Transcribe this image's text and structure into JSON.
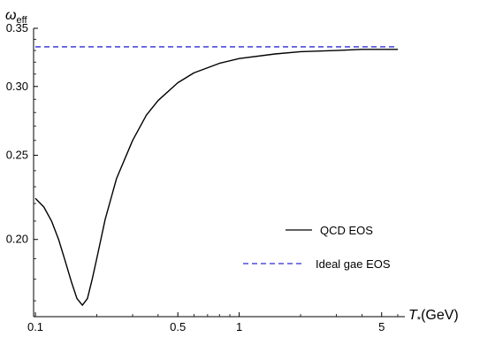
{
  "chart_data": {
    "type": "line",
    "x_scale": "log",
    "y_scale": "log",
    "xlim": [
      0.098,
      6.5
    ],
    "ylim": [
      0.163,
      0.35
    ],
    "xticks": [
      0.1,
      0.5,
      1,
      5
    ],
    "xtick_labels": [
      "0.1",
      "0.5",
      "1",
      "5"
    ],
    "yticks": [
      0.2,
      0.25,
      0.3,
      0.35
    ],
    "ytick_labels": [
      "0.20",
      "0.25",
      "0.30",
      "0.35"
    ],
    "y_axis_title": {
      "main": "ω",
      "sub": "eff"
    },
    "x_axis_title": {
      "main": "T",
      "sub": "*",
      "unit": "(GeV)"
    },
    "grid": false,
    "legend_position": "lower-right",
    "series": [
      {
        "name": "QCD EOS",
        "color": "#000000",
        "style": "solid",
        "x": [
          0.1,
          0.11,
          0.12,
          0.13,
          0.14,
          0.15,
          0.16,
          0.17,
          0.18,
          0.19,
          0.2,
          0.22,
          0.25,
          0.3,
          0.35,
          0.4,
          0.5,
          0.6,
          0.8,
          1.0,
          1.5,
          2.0,
          3.0,
          4.0,
          6.0
        ],
        "y": [
          0.223,
          0.218,
          0.21,
          0.2,
          0.189,
          0.179,
          0.171,
          0.168,
          0.171,
          0.18,
          0.19,
          0.211,
          0.235,
          0.26,
          0.278,
          0.289,
          0.303,
          0.311,
          0.319,
          0.323,
          0.327,
          0.329,
          0.33,
          0.331,
          0.331
        ]
      },
      {
        "name": "Ideal gae EOS",
        "color": "#2b2bd6",
        "style": "dashed",
        "x": [
          0.1,
          6.0
        ],
        "y": [
          0.3333,
          0.3333
        ]
      }
    ]
  }
}
